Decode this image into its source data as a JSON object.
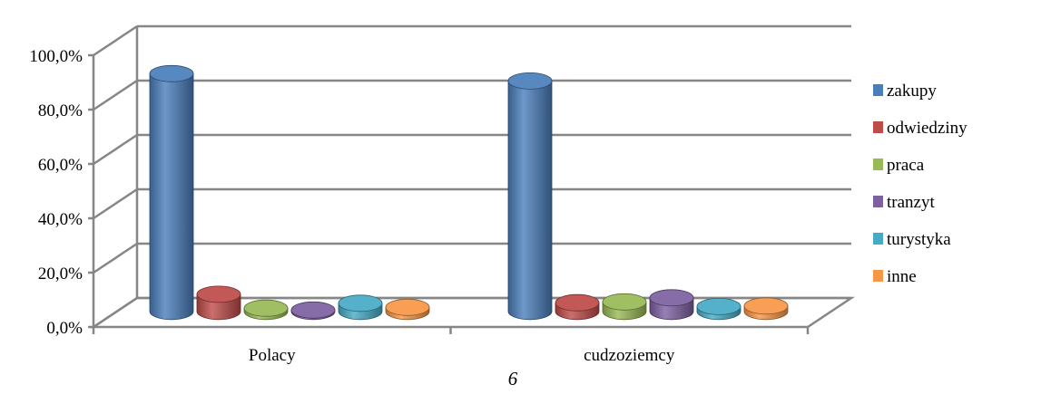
{
  "chart_data": {
    "type": "bar",
    "style": "3d-cylinder",
    "categories": [
      "Polacy",
      "cudzoziemcy"
    ],
    "series": [
      {
        "name": "zakupy",
        "values": [
          87.5,
          84.8
        ],
        "color": "#4a7ebb"
      },
      {
        "name": "odwiedziny",
        "values": [
          6.3,
          3.2
        ],
        "color": "#be4b48"
      },
      {
        "name": "praca",
        "values": [
          1.2,
          3.5
        ],
        "color": "#98b954"
      },
      {
        "name": "tranzyt",
        "values": [
          0.5,
          5.0
        ],
        "color": "#7d60a0"
      },
      {
        "name": "turystyka",
        "values": [
          3.0,
          1.8
        ],
        "color": "#46aac5"
      },
      {
        "name": "inne",
        "values": [
          1.5,
          2.0
        ],
        "color": "#f79646"
      }
    ],
    "yticks": [
      "0,0%",
      "20,0%",
      "40,0%",
      "60,0%",
      "80,0%",
      "100,0%"
    ],
    "ylim": [
      0,
      100
    ],
    "grid": true,
    "legend": "right",
    "title": "",
    "xlabel": "",
    "ylabel": ""
  },
  "page_number": "6"
}
